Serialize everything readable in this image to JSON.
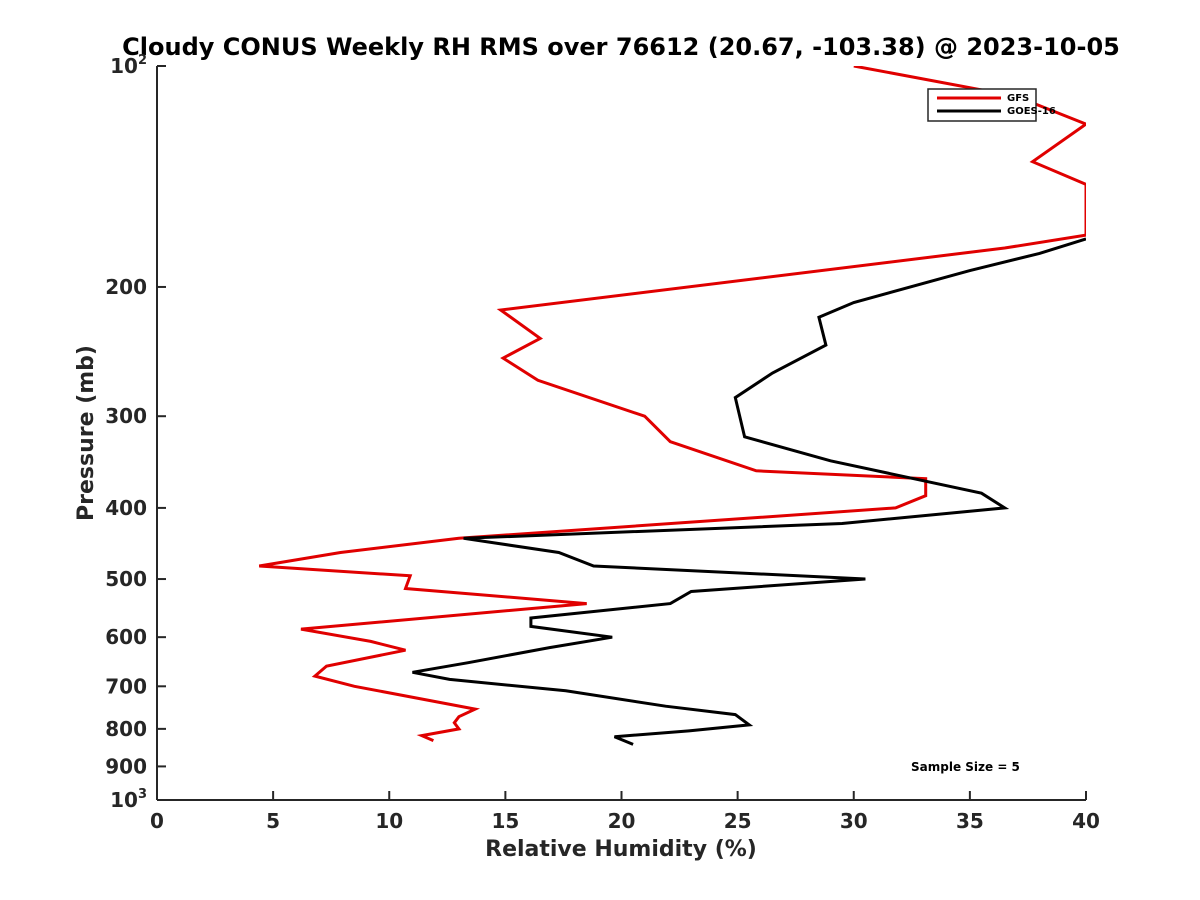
{
  "chart_data": {
    "type": "line",
    "title": "Cloudy CONUS Weekly RH RMS over 76612 (20.67, -103.38) @ 2023-10-05",
    "xlabel": "Relative Humidity (%)",
    "ylabel": "Pressure (mb)",
    "xlim": [
      0,
      40
    ],
    "ylim": [
      100,
      1000
    ],
    "y_scale": "log",
    "y_direction": "reversed",
    "x_ticks": [
      "0",
      "5",
      "10",
      "15",
      "20",
      "25",
      "30",
      "35",
      "40"
    ],
    "y_ticks": [
      {
        "value": 100,
        "base": "10",
        "exp": "2"
      },
      {
        "value": 200,
        "label": "200"
      },
      {
        "value": 300,
        "label": "300"
      },
      {
        "value": 400,
        "label": "400"
      },
      {
        "value": 500,
        "label": "500"
      },
      {
        "value": 600,
        "label": "600"
      },
      {
        "value": 700,
        "label": "700"
      },
      {
        "value": 800,
        "label": "800"
      },
      {
        "value": 900,
        "label": "900"
      },
      {
        "value": 1000,
        "base": "10",
        "exp": "3"
      }
    ],
    "legend": {
      "position": "top-right",
      "entries": [
        "GFS",
        "GOES-16"
      ]
    },
    "annotation": "Sample Size = 5",
    "series": [
      {
        "name": "GFS",
        "color": "#e00000",
        "points": [
          [
            30,
            100
          ],
          [
            37,
            110
          ],
          [
            40,
            120
          ],
          [
            37.7,
            135
          ],
          [
            40,
            145
          ],
          [
            40,
            170
          ],
          [
            36.5,
            177
          ],
          [
            14.8,
            215
          ],
          [
            16.5,
            235
          ],
          [
            14.9,
            250
          ],
          [
            16.4,
            268
          ],
          [
            21,
            300
          ],
          [
            22.1,
            325
          ],
          [
            25.8,
            356
          ],
          [
            33.1,
            365
          ],
          [
            33.1,
            385
          ],
          [
            31.8,
            400
          ],
          [
            13,
            440
          ],
          [
            7.9,
            460
          ],
          [
            4.4,
            480
          ],
          [
            10.9,
            495
          ],
          [
            10.7,
            515
          ],
          [
            18.5,
            540
          ],
          [
            6.2,
            585
          ],
          [
            9.2,
            608
          ],
          [
            10.7,
            625
          ],
          [
            7.3,
            657
          ],
          [
            6.8,
            678
          ],
          [
            8.5,
            700
          ],
          [
            13.7,
            752
          ],
          [
            13,
            770
          ],
          [
            12.8,
            785
          ],
          [
            13,
            800
          ],
          [
            11.4,
            817
          ],
          [
            11.9,
            830
          ]
        ]
      },
      {
        "name": "GOES-16",
        "color": "#000000",
        "points": [
          [
            40,
            172
          ],
          [
            38,
            180
          ],
          [
            35,
            190
          ],
          [
            30,
            210
          ],
          [
            28.5,
            220
          ],
          [
            28.8,
            240
          ],
          [
            26.5,
            262
          ],
          [
            24.9,
            283
          ],
          [
            25.3,
            320
          ],
          [
            29,
            345
          ],
          [
            35.5,
            382
          ],
          [
            36.5,
            400
          ],
          [
            29.5,
            420
          ],
          [
            13.2,
            440
          ],
          [
            17.3,
            460
          ],
          [
            18.8,
            480
          ],
          [
            30.5,
            500
          ],
          [
            23,
            520
          ],
          [
            22.1,
            540
          ],
          [
            16.1,
            565
          ],
          [
            16.1,
            580
          ],
          [
            19.6,
            600
          ],
          [
            16.9,
            620
          ],
          [
            13.4,
            650
          ],
          [
            11,
            670
          ],
          [
            12.6,
            685
          ],
          [
            17.6,
            710
          ],
          [
            21.9,
            745
          ],
          [
            24.9,
            765
          ],
          [
            25.5,
            790
          ],
          [
            22.9,
            805
          ],
          [
            19.7,
            820
          ],
          [
            20.5,
            840
          ]
        ]
      }
    ]
  }
}
